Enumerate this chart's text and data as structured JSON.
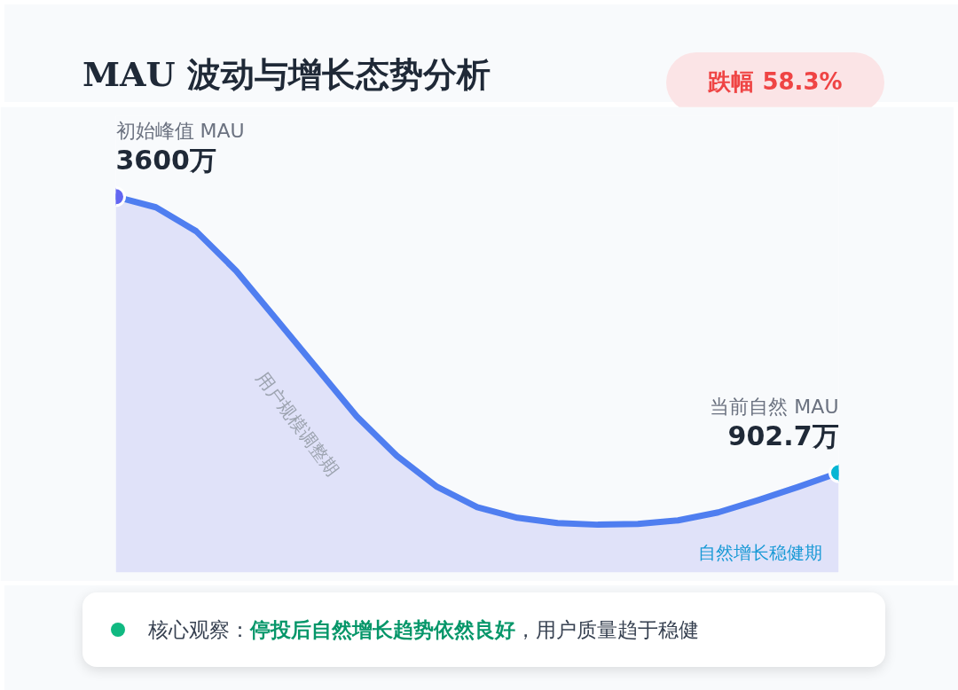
{
  "chart_data": {
    "type": "area",
    "title": "MAU 波动与增长态势分析",
    "categories": [
      null,
      null,
      null,
      null,
      null,
      null,
      null,
      null,
      null,
      null,
      null,
      null,
      null,
      null,
      null,
      null,
      null,
      null,
      null
    ],
    "series": [
      {
        "color": "#4f7ef0",
        "values": [
          3600,
          3497,
          3264,
          2876,
          2402,
          1928,
          1454,
          1067,
          765,
          567,
          463,
          412,
          395,
          403,
          437,
          515,
          636,
          765,
          902.7
        ],
        "value_labels": [
          "3600万",
          null,
          null,
          null,
          null,
          null,
          null,
          null,
          null,
          null,
          null,
          null,
          null,
          null,
          null,
          null,
          null,
          null,
          "902.7万"
        ]
      }
    ],
    "tick_labels": false,
    "annotations": [
      "初始峰值 MAU",
      "当前自然 MAU",
      "跌幅 58.3%",
      "用户规模调整期",
      "自然增长稳健期",
      "核心观察：",
      "停投后自然增长趋势依然良好",
      "，用户质量趋于稳健"
    ]
  }
}
